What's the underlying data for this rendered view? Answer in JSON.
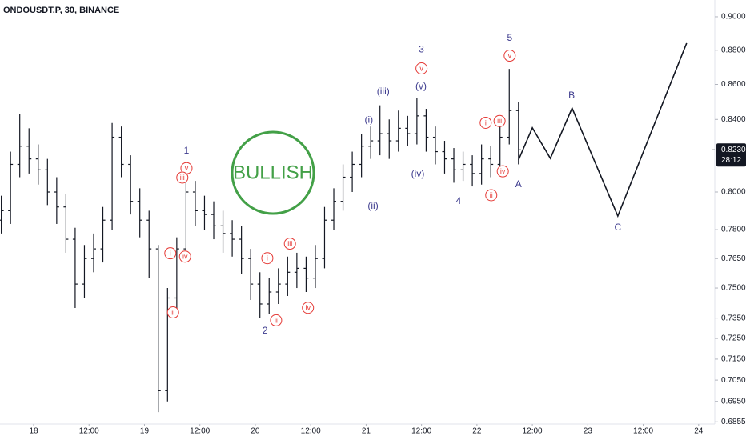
{
  "chart_data": {
    "type": "ohlc",
    "title": "ONDOUSDT.P, 30, BINANCE",
    "badge": "BULLISH",
    "log_scale": true,
    "grid": false,
    "bar_color": "#131722",
    "plain_label_color": "#3d3b8e",
    "circled_label_color": "#e53935",
    "badge_color": "#43a047",
    "xlim": [
      -7.28,
      147.5
    ],
    "ylim": [
      0.6845,
      0.9102
    ],
    "xticks": [
      {
        "value": 0,
        "label": "18"
      },
      {
        "value": 12,
        "label": "12:00"
      },
      {
        "value": 24,
        "label": "19"
      },
      {
        "value": 36,
        "label": "12:00"
      },
      {
        "value": 48,
        "label": "20"
      },
      {
        "value": 60,
        "label": "12:00"
      },
      {
        "value": 72,
        "label": "21"
      },
      {
        "value": 84,
        "label": "12:00"
      },
      {
        "value": 96,
        "label": "22"
      },
      {
        "value": 108,
        "label": "12:00"
      },
      {
        "value": 120,
        "label": "23"
      },
      {
        "value": 132,
        "label": "12:00"
      },
      {
        "value": 144,
        "label": "24"
      }
    ],
    "yticks": [
      {
        "value": 0.9,
        "label": "0.9000"
      },
      {
        "value": 0.88,
        "label": "0.8800"
      },
      {
        "value": 0.86,
        "label": "0.8600"
      },
      {
        "value": 0.84,
        "label": "0.8400"
      },
      {
        "value": 0.8,
        "label": "0.8000"
      },
      {
        "value": 0.78,
        "label": "0.7800"
      },
      {
        "value": 0.765,
        "label": "0.7650"
      },
      {
        "value": 0.75,
        "label": "0.7500"
      },
      {
        "value": 0.735,
        "label": "0.7350"
      },
      {
        "value": 0.725,
        "label": "0.7250"
      },
      {
        "value": 0.715,
        "label": "0.7150"
      },
      {
        "value": 0.705,
        "label": "0.7050"
      },
      {
        "value": 0.695,
        "label": "0.6950"
      },
      {
        "value": 0.6855,
        "label": "0.6855"
      }
    ],
    "current_price": {
      "value": 0.823,
      "label": "0.8230",
      "countdown": "28:12"
    },
    "x": [
      -7,
      -5,
      -3,
      -1,
      1,
      3,
      5,
      7,
      9,
      11,
      13,
      15,
      17,
      19,
      21,
      23,
      25,
      27,
      29,
      31,
      33,
      35,
      37,
      39,
      41,
      43,
      45,
      47,
      49,
      51,
      53,
      55,
      57,
      59,
      61,
      63,
      65,
      67,
      69,
      71,
      73,
      75,
      77,
      79,
      81,
      83,
      85,
      87,
      89,
      91,
      93,
      95,
      97,
      99,
      101,
      103,
      105
    ],
    "open": [
      0.785,
      0.79,
      0.815,
      0.825,
      0.818,
      0.812,
      0.8,
      0.792,
      0.775,
      0.752,
      0.765,
      0.77,
      0.785,
      0.83,
      0.815,
      0.795,
      0.785,
      0.77,
      0.7,
      0.745,
      0.77,
      0.8,
      0.79,
      0.788,
      0.782,
      0.778,
      0.775,
      0.765,
      0.752,
      0.742,
      0.748,
      0.752,
      0.758,
      0.76,
      0.755,
      0.765,
      0.785,
      0.795,
      0.808,
      0.815,
      0.825,
      0.828,
      0.832,
      0.828,
      0.835,
      0.832,
      0.842,
      0.83,
      0.822,
      0.818,
      0.812,
      0.815,
      0.81,
      0.818,
      0.815,
      0.83,
      0.845
    ],
    "high": [
      0.798,
      0.822,
      0.843,
      0.835,
      0.826,
      0.818,
      0.808,
      0.799,
      0.781,
      0.772,
      0.778,
      0.792,
      0.838,
      0.836,
      0.82,
      0.802,
      0.79,
      0.772,
      0.75,
      0.776,
      0.81,
      0.806,
      0.798,
      0.795,
      0.79,
      0.785,
      0.782,
      0.77,
      0.758,
      0.755,
      0.76,
      0.766,
      0.768,
      0.766,
      0.772,
      0.792,
      0.802,
      0.815,
      0.822,
      0.832,
      0.836,
      0.848,
      0.84,
      0.845,
      0.842,
      0.852,
      0.846,
      0.836,
      0.828,
      0.824,
      0.822,
      0.82,
      0.826,
      0.825,
      0.838,
      0.869,
      0.85
    ],
    "low": [
      0.778,
      0.783,
      0.808,
      0.81,
      0.804,
      0.793,
      0.783,
      0.768,
      0.74,
      0.745,
      0.758,
      0.763,
      0.78,
      0.808,
      0.788,
      0.776,
      0.755,
      0.69,
      0.695,
      0.738,
      0.765,
      0.782,
      0.78,
      0.775,
      0.768,
      0.766,
      0.757,
      0.744,
      0.735,
      0.737,
      0.742,
      0.746,
      0.75,
      0.748,
      0.75,
      0.76,
      0.78,
      0.79,
      0.8,
      0.808,
      0.818,
      0.82,
      0.818,
      0.822,
      0.825,
      0.826,
      0.822,
      0.815,
      0.81,
      0.805,
      0.806,
      0.803,
      0.804,
      0.808,
      0.81,
      0.826,
      0.815
    ],
    "close": [
      0.79,
      0.815,
      0.825,
      0.818,
      0.812,
      0.8,
      0.792,
      0.775,
      0.752,
      0.765,
      0.77,
      0.785,
      0.83,
      0.815,
      0.795,
      0.785,
      0.77,
      0.7,
      0.745,
      0.77,
      0.8,
      0.79,
      0.788,
      0.782,
      0.778,
      0.775,
      0.765,
      0.752,
      0.742,
      0.748,
      0.752,
      0.758,
      0.76,
      0.755,
      0.765,
      0.785,
      0.795,
      0.808,
      0.815,
      0.825,
      0.828,
      0.832,
      0.828,
      0.835,
      0.832,
      0.842,
      0.83,
      0.822,
      0.818,
      0.812,
      0.815,
      0.81,
      0.818,
      0.815,
      0.83,
      0.845,
      0.823
    ],
    "projection": {
      "x": [
        105.0,
        108.0,
        111.9,
        116.6,
        126.5,
        141.4
      ],
      "y": [
        0.8174,
        0.8353,
        0.8183,
        0.8464,
        0.7872,
        0.8842
      ]
    },
    "annotations": [
      {
        "text": "1",
        "style": "plain",
        "x": 33.1,
        "y": 0.8223
      },
      {
        "text": "v",
        "style": "circled",
        "x": 33.1,
        "y": 0.8129
      },
      {
        "text": "iii",
        "style": "circled",
        "x": 32.2,
        "y": 0.8078
      },
      {
        "text": "i",
        "style": "circled",
        "x": 29.6,
        "y": 0.7677
      },
      {
        "text": "iv",
        "style": "circled",
        "x": 32.8,
        "y": 0.766
      },
      {
        "text": "ii",
        "style": "circled",
        "x": 30.2,
        "y": 0.7378
      },
      {
        "text": "2",
        "style": "plain",
        "x": 50.1,
        "y": 0.7286
      },
      {
        "text": "i",
        "style": "circled",
        "x": 50.6,
        "y": 0.7652
      },
      {
        "text": "iii",
        "style": "circled",
        "x": 55.5,
        "y": 0.7727
      },
      {
        "text": "iv",
        "style": "circled",
        "x": 59.4,
        "y": 0.7401
      },
      {
        "text": "ii",
        "style": "circled",
        "x": 52.5,
        "y": 0.7339
      },
      {
        "text": "(i)",
        "style": "plain",
        "x": 72.6,
        "y": 0.8395
      },
      {
        "text": "(ii)",
        "style": "plain",
        "x": 73.5,
        "y": 0.7923
      },
      {
        "text": "(iii)",
        "style": "plain",
        "x": 75.7,
        "y": 0.8558
      },
      {
        "text": "3",
        "style": "plain",
        "x": 84.0,
        "y": 0.8802
      },
      {
        "text": "v",
        "style": "circled",
        "x": 84.0,
        "y": 0.8693
      },
      {
        "text": "(v)",
        "style": "plain",
        "x": 83.9,
        "y": 0.8587
      },
      {
        "text": "(iv)",
        "style": "plain",
        "x": 83.2,
        "y": 0.8095
      },
      {
        "text": "4",
        "style": "plain",
        "x": 92.0,
        "y": 0.7949
      },
      {
        "text": "5",
        "style": "plain",
        "x": 103.1,
        "y": 0.8871
      },
      {
        "text": "v",
        "style": "circled",
        "x": 103.1,
        "y": 0.8768
      },
      {
        "text": "iii",
        "style": "circled",
        "x": 100.9,
        "y": 0.8391
      },
      {
        "text": "i",
        "style": "circled",
        "x": 97.9,
        "y": 0.8381
      },
      {
        "text": "iv",
        "style": "circled",
        "x": 101.6,
        "y": 0.8112
      },
      {
        "text": "ii",
        "style": "circled",
        "x": 99.1,
        "y": 0.7983
      },
      {
        "text": "A",
        "style": "plain",
        "x": 105.0,
        "y": 0.8039
      },
      {
        "text": "B",
        "style": "plain",
        "x": 116.5,
        "y": 0.8535
      },
      {
        "text": "C",
        "style": "plain",
        "x": 126.5,
        "y": 0.781
      }
    ]
  }
}
